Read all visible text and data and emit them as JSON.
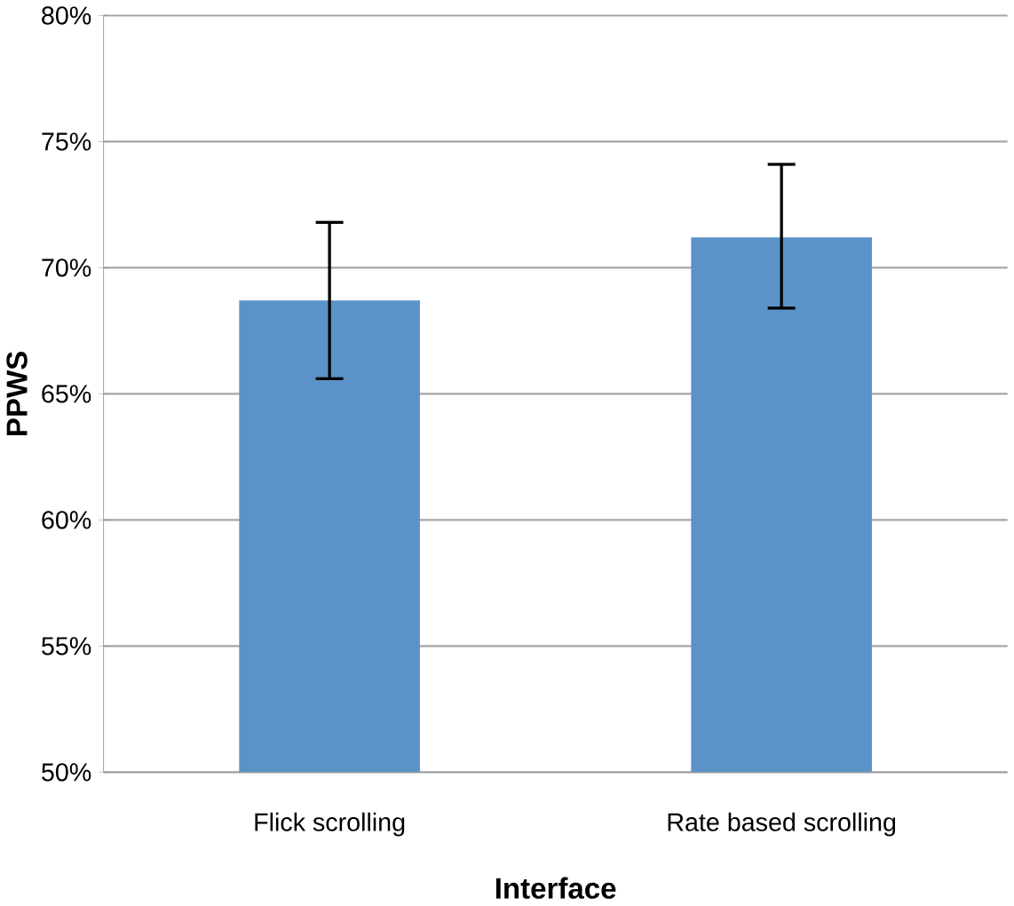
{
  "chart_data": {
    "type": "bar",
    "xlabel": "Interface",
    "ylabel": "PPWS",
    "categories": [
      "Flick scrolling",
      "Rate based scrolling"
    ],
    "values": [
      68.7,
      71.2
    ],
    "color": "#5b93c8",
    "errors": [
      [
        65.6,
        71.8
      ],
      [
        68.4,
        74.1
      ]
    ],
    "ylim": [
      50,
      80
    ],
    "yticks": [
      {
        "value": 50,
        "label": "50%"
      },
      {
        "value": 55,
        "label": "55%"
      },
      {
        "value": 60,
        "label": "60%"
      },
      {
        "value": 65,
        "label": "65%"
      },
      {
        "value": 70,
        "label": "70%"
      },
      {
        "value": 75,
        "label": "75%"
      },
      {
        "value": 80,
        "label": "80%"
      }
    ],
    "grid": "y"
  }
}
